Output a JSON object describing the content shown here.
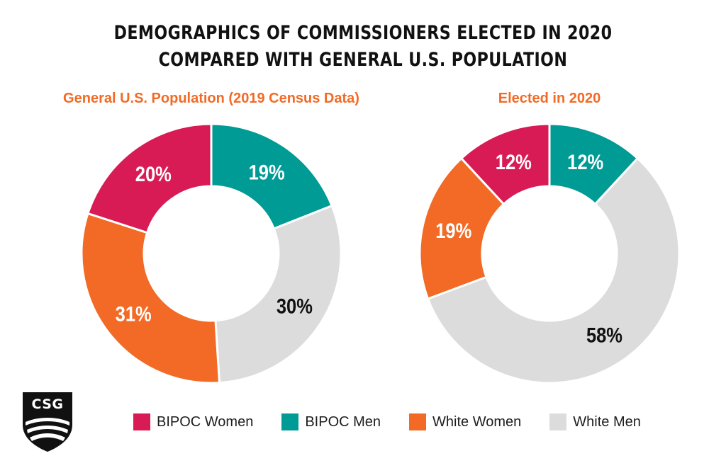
{
  "title": {
    "line1": "DEMOGRAPHICS OF COMMISSIONERS ELECTED IN 2020",
    "line2": "COMPARED WITH GENERAL U.S. POPULATION"
  },
  "colors": {
    "bipoc_women": "#d81b55",
    "bipoc_men": "#009b95",
    "white_women": "#f26a25",
    "white_men": "#dcdcdc",
    "subtitle": "#f26a25"
  },
  "logo": {
    "text": "CSG"
  },
  "legend": [
    {
      "label": "BIPOC Women",
      "color": "#d81b55"
    },
    {
      "label": "BIPOC Men",
      "color": "#009b95"
    },
    {
      "label": "White Women",
      "color": "#f26a25"
    },
    {
      "label": "White Men",
      "color": "#dcdcdc"
    }
  ],
  "chart_data": [
    {
      "type": "pie",
      "title": "General U.S. Population (2019 Census Data)",
      "categories": [
        "BIPOC Men",
        "White Men",
        "White Women",
        "BIPOC Women"
      ],
      "values": [
        19,
        30,
        31,
        20
      ],
      "labels": [
        "19%",
        "30%",
        "31%",
        "20%"
      ],
      "colors": [
        "#009b95",
        "#dcdcdc",
        "#f26a25",
        "#d81b55"
      ],
      "label_colors": [
        "#ffffff",
        "#111111",
        "#ffffff",
        "#ffffff"
      ],
      "donut": true,
      "legend": "bottom"
    },
    {
      "type": "pie",
      "title": "Elected in 2020",
      "categories": [
        "BIPOC Men",
        "White Men",
        "White Women",
        "BIPOC Women"
      ],
      "values": [
        12,
        58,
        19,
        12
      ],
      "labels": [
        "12%",
        "58%",
        "19%",
        "12%"
      ],
      "colors": [
        "#009b95",
        "#dcdcdc",
        "#f26a25",
        "#d81b55"
      ],
      "label_colors": [
        "#ffffff",
        "#111111",
        "#ffffff",
        "#ffffff"
      ],
      "donut": true,
      "legend": "bottom"
    }
  ]
}
